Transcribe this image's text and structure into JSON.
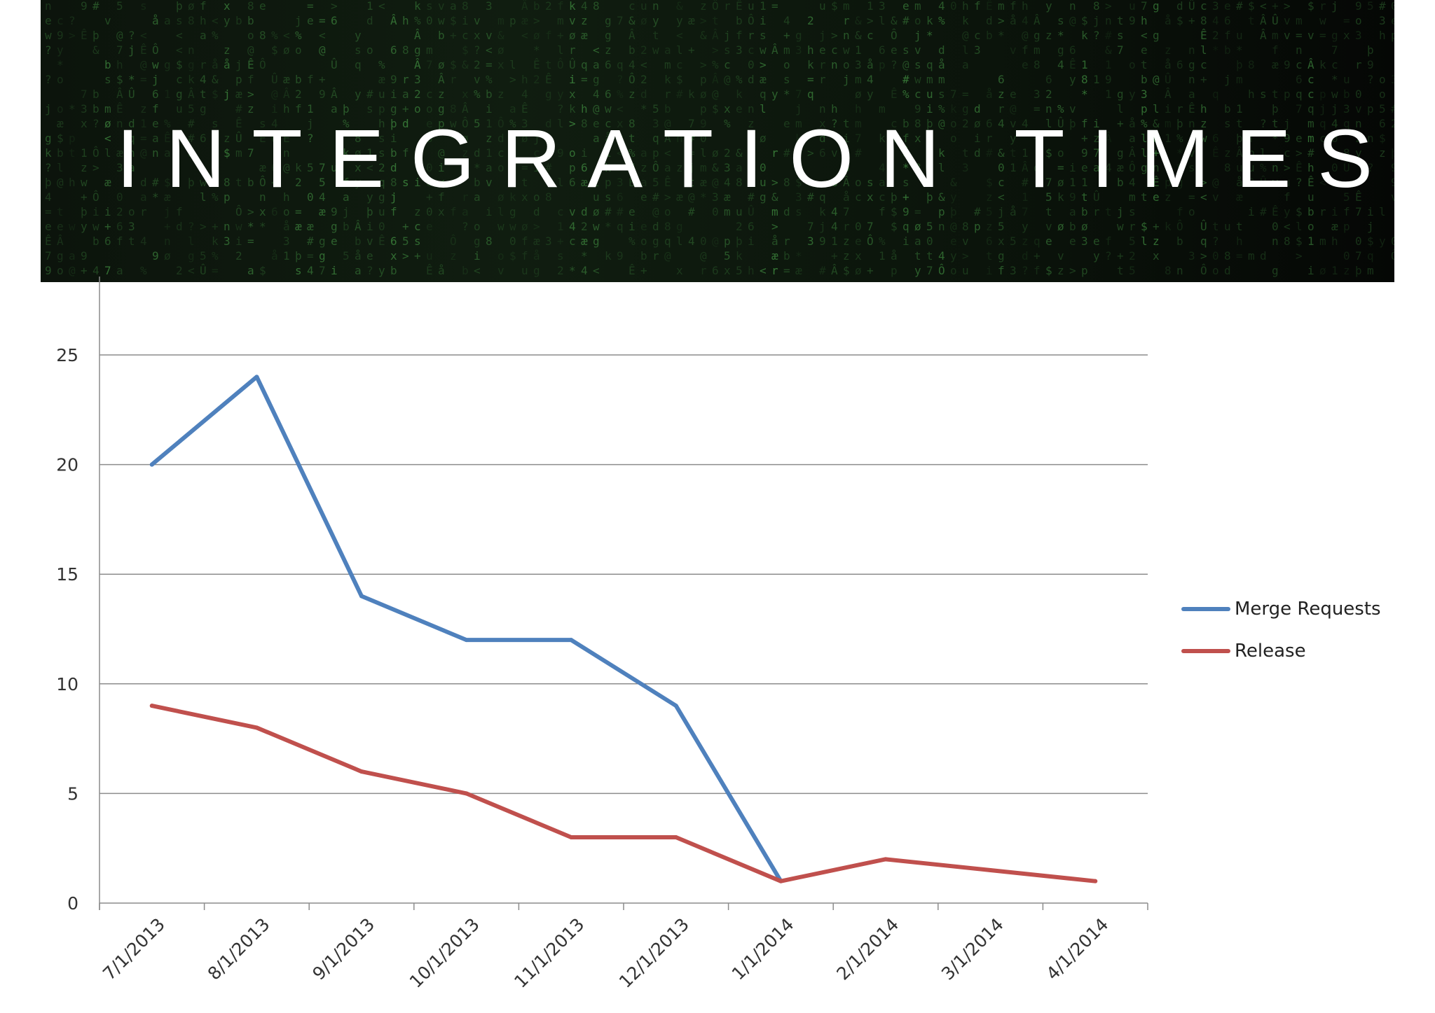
{
  "header": {
    "title": "INTEGRATION TIMES",
    "background_icon": "matrix-code-rain",
    "background_color": "#0d170d",
    "glyph_color": "#3f8a3f"
  },
  "chart_data": {
    "type": "line",
    "title": "",
    "xlabel": "",
    "ylabel": "",
    "categories": [
      "7/1/2013",
      "8/1/2013",
      "9/1/2013",
      "10/1/2013",
      "11/1/2013",
      "12/1/2013",
      "1/1/2014",
      "2/1/2014",
      "3/1/2014",
      "4/1/2014"
    ],
    "series": [
      {
        "name": "Merge Requests",
        "color": "#4f81bd",
        "values": [
          20,
          24,
          14,
          12,
          12,
          9,
          1,
          null,
          null,
          null
        ]
      },
      {
        "name": "Release",
        "color": "#c0504d",
        "values": [
          9,
          8,
          6,
          5,
          3,
          3,
          1,
          2,
          1.5,
          1
        ]
      }
    ],
    "ylim": [
      0,
      25
    ],
    "yticks": [
      0,
      5,
      10,
      15,
      20,
      25
    ],
    "grid": true,
    "legend_position": "right"
  }
}
